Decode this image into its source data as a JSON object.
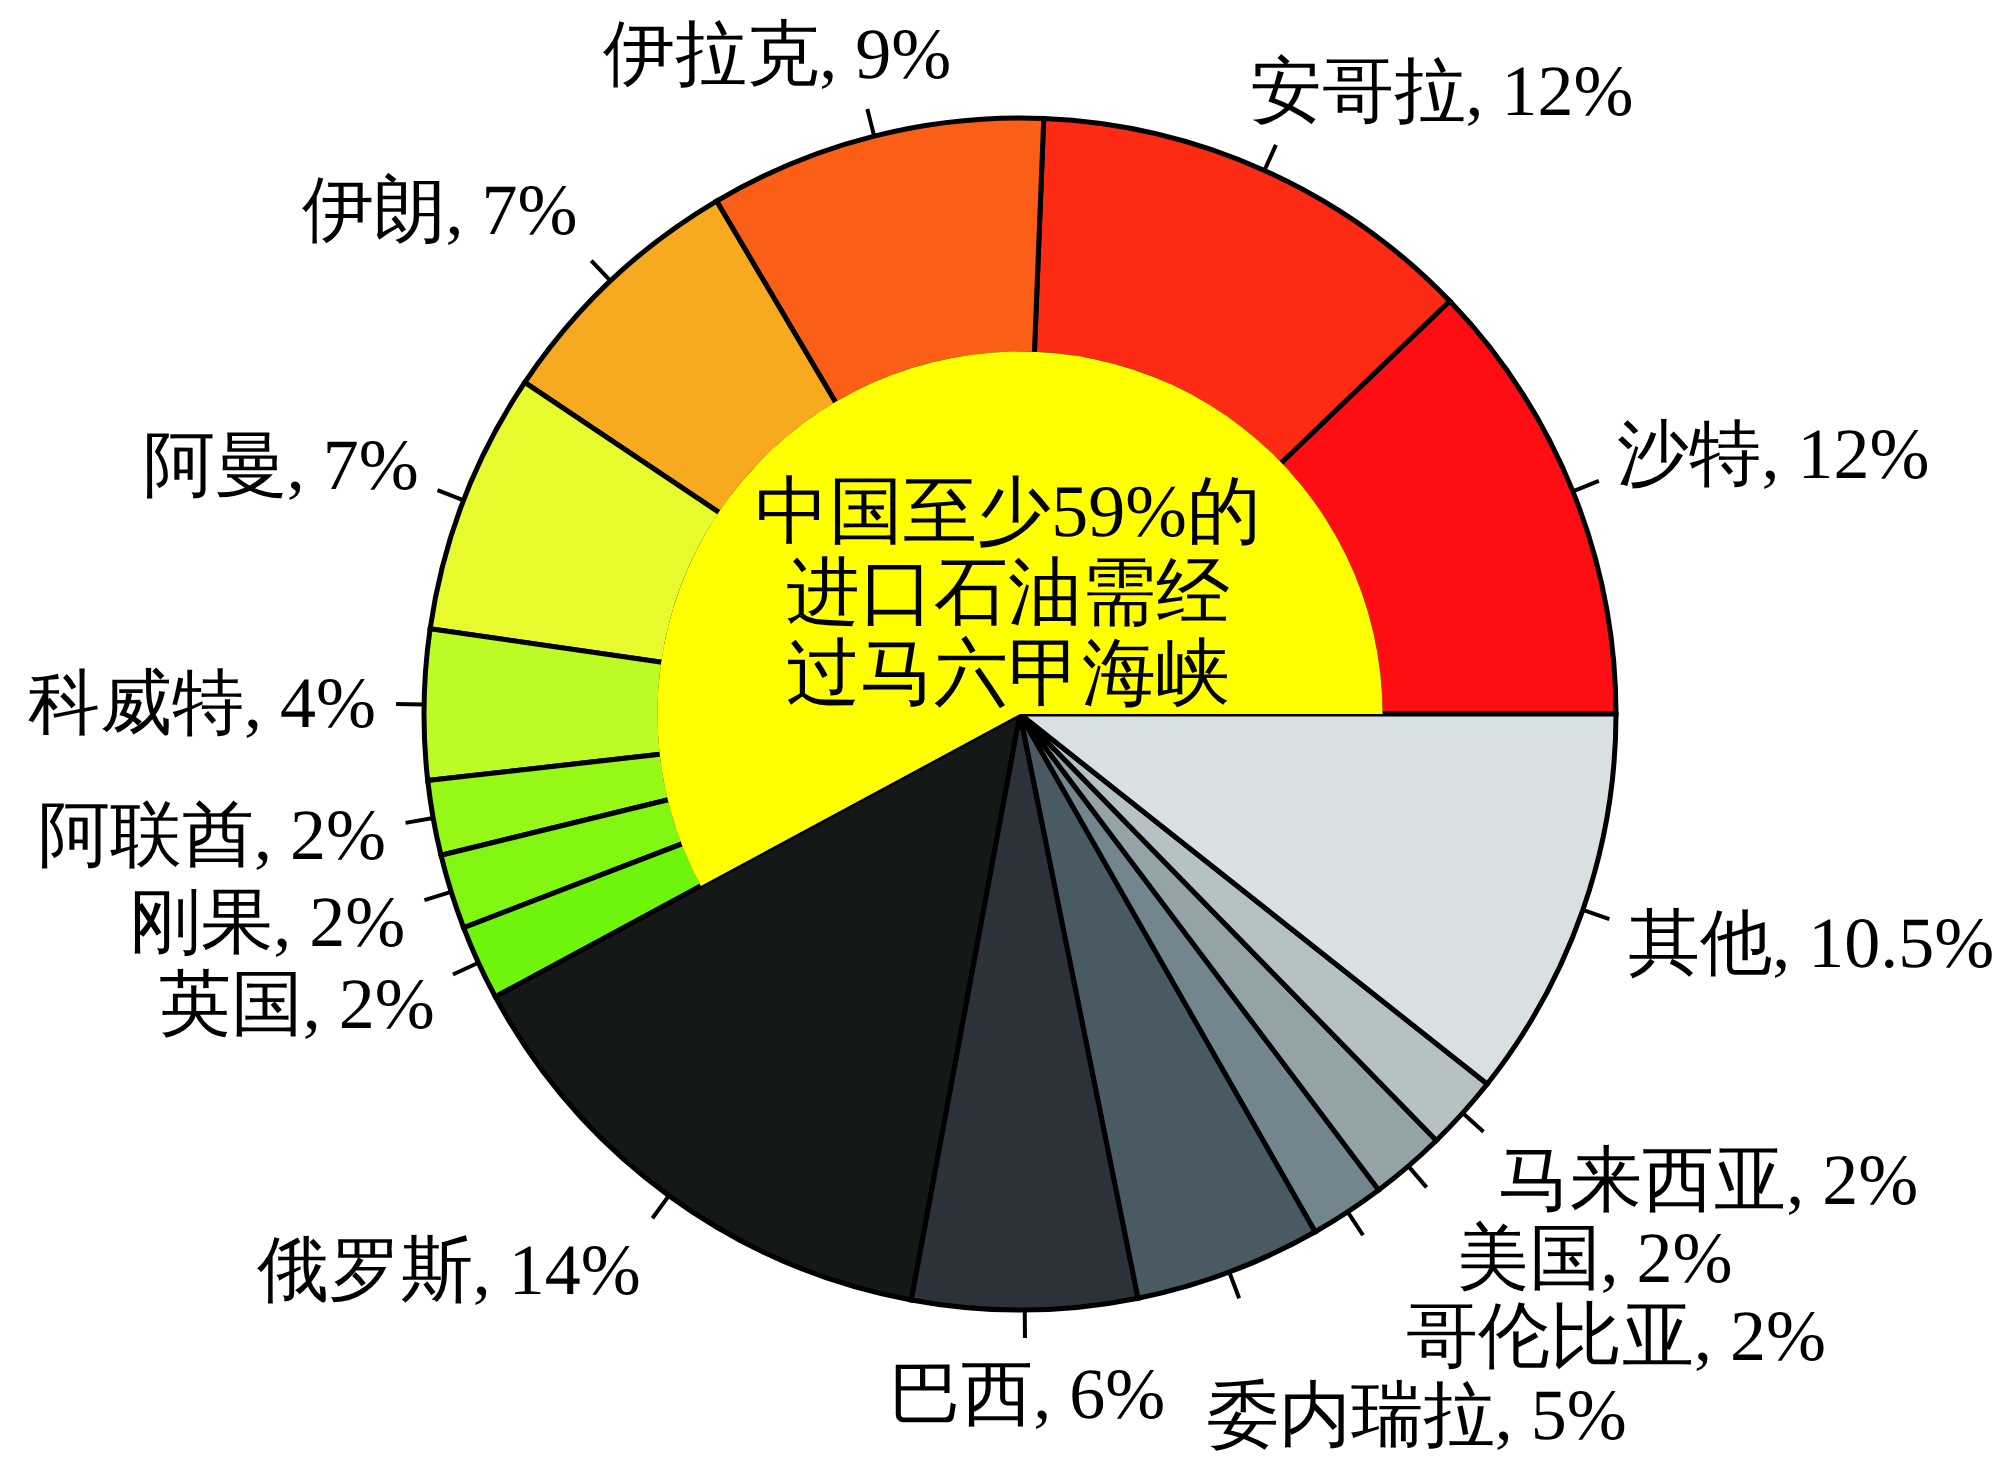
{
  "chart_data": {
    "type": "pie",
    "categories": [
      "沙特",
      "安哥拉",
      "伊拉克",
      "伊朗",
      "阿曼",
      "科威特",
      "阿联酋",
      "刚果",
      "英国",
      "俄罗斯",
      "巴西",
      "委内瑞拉",
      "哥伦比亚",
      "美国",
      "马来西亚",
      "其他"
    ],
    "values": [
      12,
      12,
      9,
      7,
      7,
      4,
      2,
      2,
      2,
      14,
      6,
      5,
      2,
      2,
      2,
      10.5
    ],
    "colors": [
      "#fe0e12",
      "#fd2a14",
      "#fb5e17",
      "#f7aa1f",
      "#e6fa2e",
      "#bdfb26",
      "#95f817",
      "#80f611",
      "#6ef50b",
      "#141918",
      "#2b323a",
      "#4a5a63",
      "#74868d",
      "#94a3a8",
      "#b5c1c3",
      "#d9e0e1"
    ],
    "value_labels": [
      "12%",
      "12%",
      "9%",
      "7%",
      "7%",
      "4%",
      "2%",
      "2%",
      "2%",
      "14%",
      "6%",
      "5%",
      "2%",
      "2%",
      "2%",
      "10.5%"
    ],
    "annotations": [
      "中国至少59%的进口石油需经过马六甲海峡"
    ]
  }
}
